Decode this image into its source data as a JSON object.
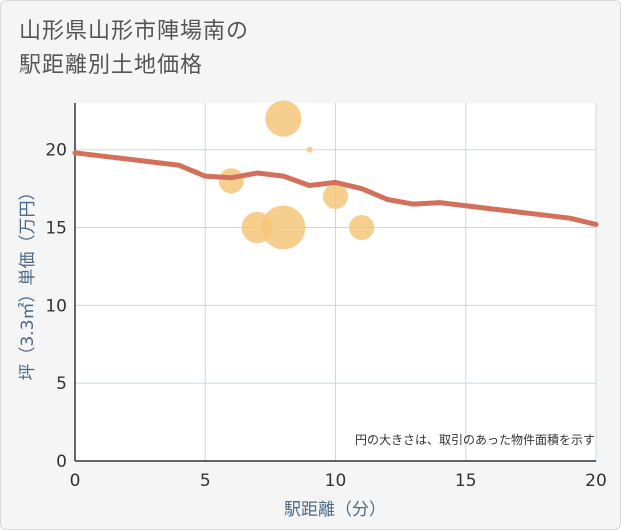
{
  "title": {
    "line1": "山形県山形市陣場南の",
    "line2": "駅距離別土地価格"
  },
  "colors": {
    "line": "#d4705a",
    "bubble": "#f5c77a",
    "grid": "#c8d8e8",
    "plot_bg": "#ffffff"
  },
  "chart_data": {
    "type": "scatter",
    "title": "山形県山形市陣場南の駅距離別土地価格",
    "xlabel": "駅距離（分）",
    "ylabel": "坪（3.3㎡）単価（万円）",
    "xlim": [
      0,
      20
    ],
    "ylim": [
      0,
      23
    ],
    "xticks": [
      0,
      5,
      10,
      15,
      20
    ],
    "yticks": [
      0,
      5,
      10,
      15,
      20
    ],
    "grid": true,
    "note": "円の大きさは、取引のあった物件面積を示す",
    "scatter": [
      {
        "x": 6,
        "y": 18.0,
        "size": 1
      },
      {
        "x": 7,
        "y": 15.0,
        "size": 2
      },
      {
        "x": 8,
        "y": 22.0,
        "size": 3
      },
      {
        "x": 8,
        "y": 15.0,
        "size": 5
      },
      {
        "x": 9,
        "y": 20.0,
        "size": 0.3
      },
      {
        "x": 10,
        "y": 17.0,
        "size": 1
      },
      {
        "x": 11,
        "y": 15.0,
        "size": 1
      }
    ],
    "line": {
      "name": "trend",
      "x": [
        0,
        1,
        2,
        3,
        4,
        5,
        6,
        7,
        8,
        9,
        10,
        11,
        12,
        13,
        14,
        15,
        16,
        17,
        18,
        19,
        20
      ],
      "y": [
        19.8,
        19.6,
        19.4,
        19.2,
        19.0,
        18.3,
        18.2,
        18.5,
        18.3,
        17.7,
        17.9,
        17.5,
        16.8,
        16.5,
        16.6,
        16.4,
        16.2,
        16.0,
        15.8,
        15.6,
        15.2
      ]
    }
  }
}
